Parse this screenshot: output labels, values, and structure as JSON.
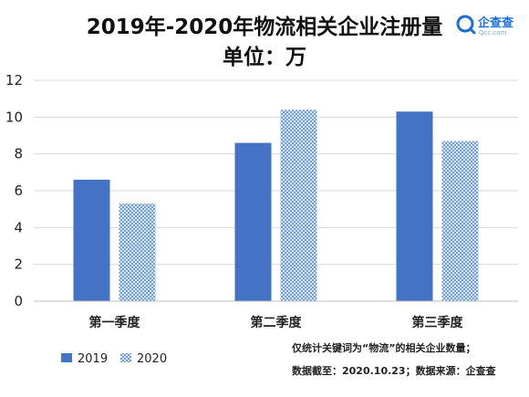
{
  "chart_data": {
    "type": "bar",
    "title": "2019年-2020年物流相关企业注册量",
    "subtitle": "单位：万",
    "categories": [
      "第一季度",
      "第二季度",
      "第三季度"
    ],
    "series": [
      {
        "name": "2019",
        "values": [
          6.6,
          8.6,
          10.3
        ],
        "color": "#4472c4",
        "pattern": "solid"
      },
      {
        "name": "2020",
        "values": [
          5.3,
          10.4,
          8.7
        ],
        "color": "#8fb4e3",
        "pattern": "checker"
      }
    ],
    "y_ticks": [
      "0",
      "2",
      "4",
      "6",
      "8",
      "10",
      "12"
    ],
    "ylim": [
      0,
      12
    ],
    "grid": true,
    "legend_position": "bottom-left"
  },
  "notes": {
    "line1": "仅统计关键词为“物流”的相关企业数量；",
    "line2": "数据截至：2020.10.23；数据来源：企查查"
  },
  "logo": {
    "name": "企查查",
    "domain": "Qcc.com"
  }
}
